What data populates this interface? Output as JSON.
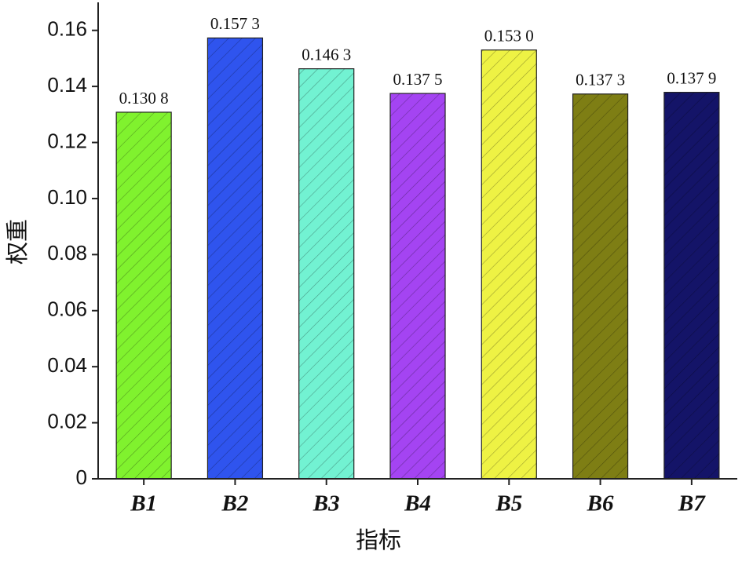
{
  "chart_data": {
    "type": "bar",
    "x_label": "指标",
    "y_label": "权重",
    "categories": [
      "B1",
      "B2",
      "B3",
      "B4",
      "B5",
      "B6",
      "B7"
    ],
    "values": [
      0.1308,
      0.1573,
      0.1463,
      0.1375,
      0.153,
      0.1373,
      0.1379
    ],
    "value_labels": [
      "0.130 8",
      "0.157 3",
      "0.146 3",
      "0.137 5",
      "0.153 0",
      "0.137 3",
      "0.137 9"
    ],
    "colors": [
      "#80f22e",
      "#2f54ee",
      "#72f2d2",
      "#a444f2",
      "#eef244",
      "#7e7e14",
      "#141468"
    ],
    "ylim": [
      0,
      0.17
    ],
    "yticks": [
      0,
      0.02,
      0.04,
      0.06,
      0.08,
      {
        "value": 0.1,
        "label": "0.10"
      },
      0.12,
      0.14,
      0.16
    ]
  }
}
